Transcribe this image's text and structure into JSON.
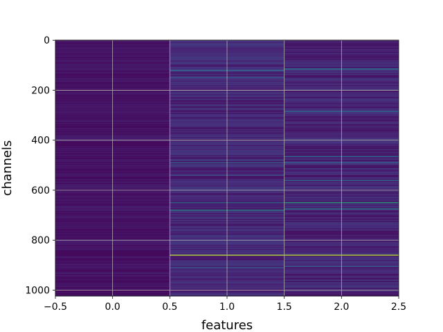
{
  "chart_data": {
    "type": "heatmap",
    "title": "",
    "xlabel": "features",
    "ylabel": "channels",
    "xlim": [
      -0.5,
      2.5
    ],
    "ylim": [
      1023.5,
      -0.5
    ],
    "y_inverted": true,
    "grid": true,
    "colormap": "viridis",
    "x_ticks": [
      -0.5,
      0.0,
      0.5,
      1.0,
      1.5,
      2.0,
      2.5
    ],
    "x_tick_labels": [
      "−0.5",
      "0.0",
      "0.5",
      "1.0",
      "1.5",
      "2.0",
      "2.5"
    ],
    "y_ticks": [
      0,
      200,
      400,
      600,
      800,
      1000
    ],
    "y_tick_labels": [
      "0",
      "200",
      "400",
      "600",
      "800",
      "1000"
    ],
    "columns": [
      0,
      1,
      2
    ],
    "n_rows": 1024,
    "column_base_level": [
      0.02,
      0.05,
      0.04
    ],
    "highlighted_rows": [
      {
        "column": 1,
        "row": 120,
        "value": 0.35
      },
      {
        "column": 1,
        "row": 150,
        "value": 0.25
      },
      {
        "column": 1,
        "row": 490,
        "value": 0.3
      },
      {
        "column": 1,
        "row": 540,
        "value": 0.25
      },
      {
        "column": 1,
        "row": 650,
        "value": 0.35
      },
      {
        "column": 1,
        "row": 680,
        "value": 0.5
      },
      {
        "column": 1,
        "row": 860,
        "value": 0.9
      },
      {
        "column": 1,
        "row": 910,
        "value": 0.3
      },
      {
        "column": 2,
        "row": 115,
        "value": 0.45
      },
      {
        "column": 2,
        "row": 285,
        "value": 0.35
      },
      {
        "column": 2,
        "row": 465,
        "value": 0.35
      },
      {
        "column": 2,
        "row": 490,
        "value": 0.3
      },
      {
        "column": 2,
        "row": 560,
        "value": 0.35
      },
      {
        "column": 2,
        "row": 650,
        "value": 0.6
      },
      {
        "column": 2,
        "row": 675,
        "value": 0.45
      },
      {
        "column": 2,
        "row": 860,
        "value": 0.9
      },
      {
        "column": 2,
        "row": 905,
        "value": 0.3
      }
    ]
  }
}
